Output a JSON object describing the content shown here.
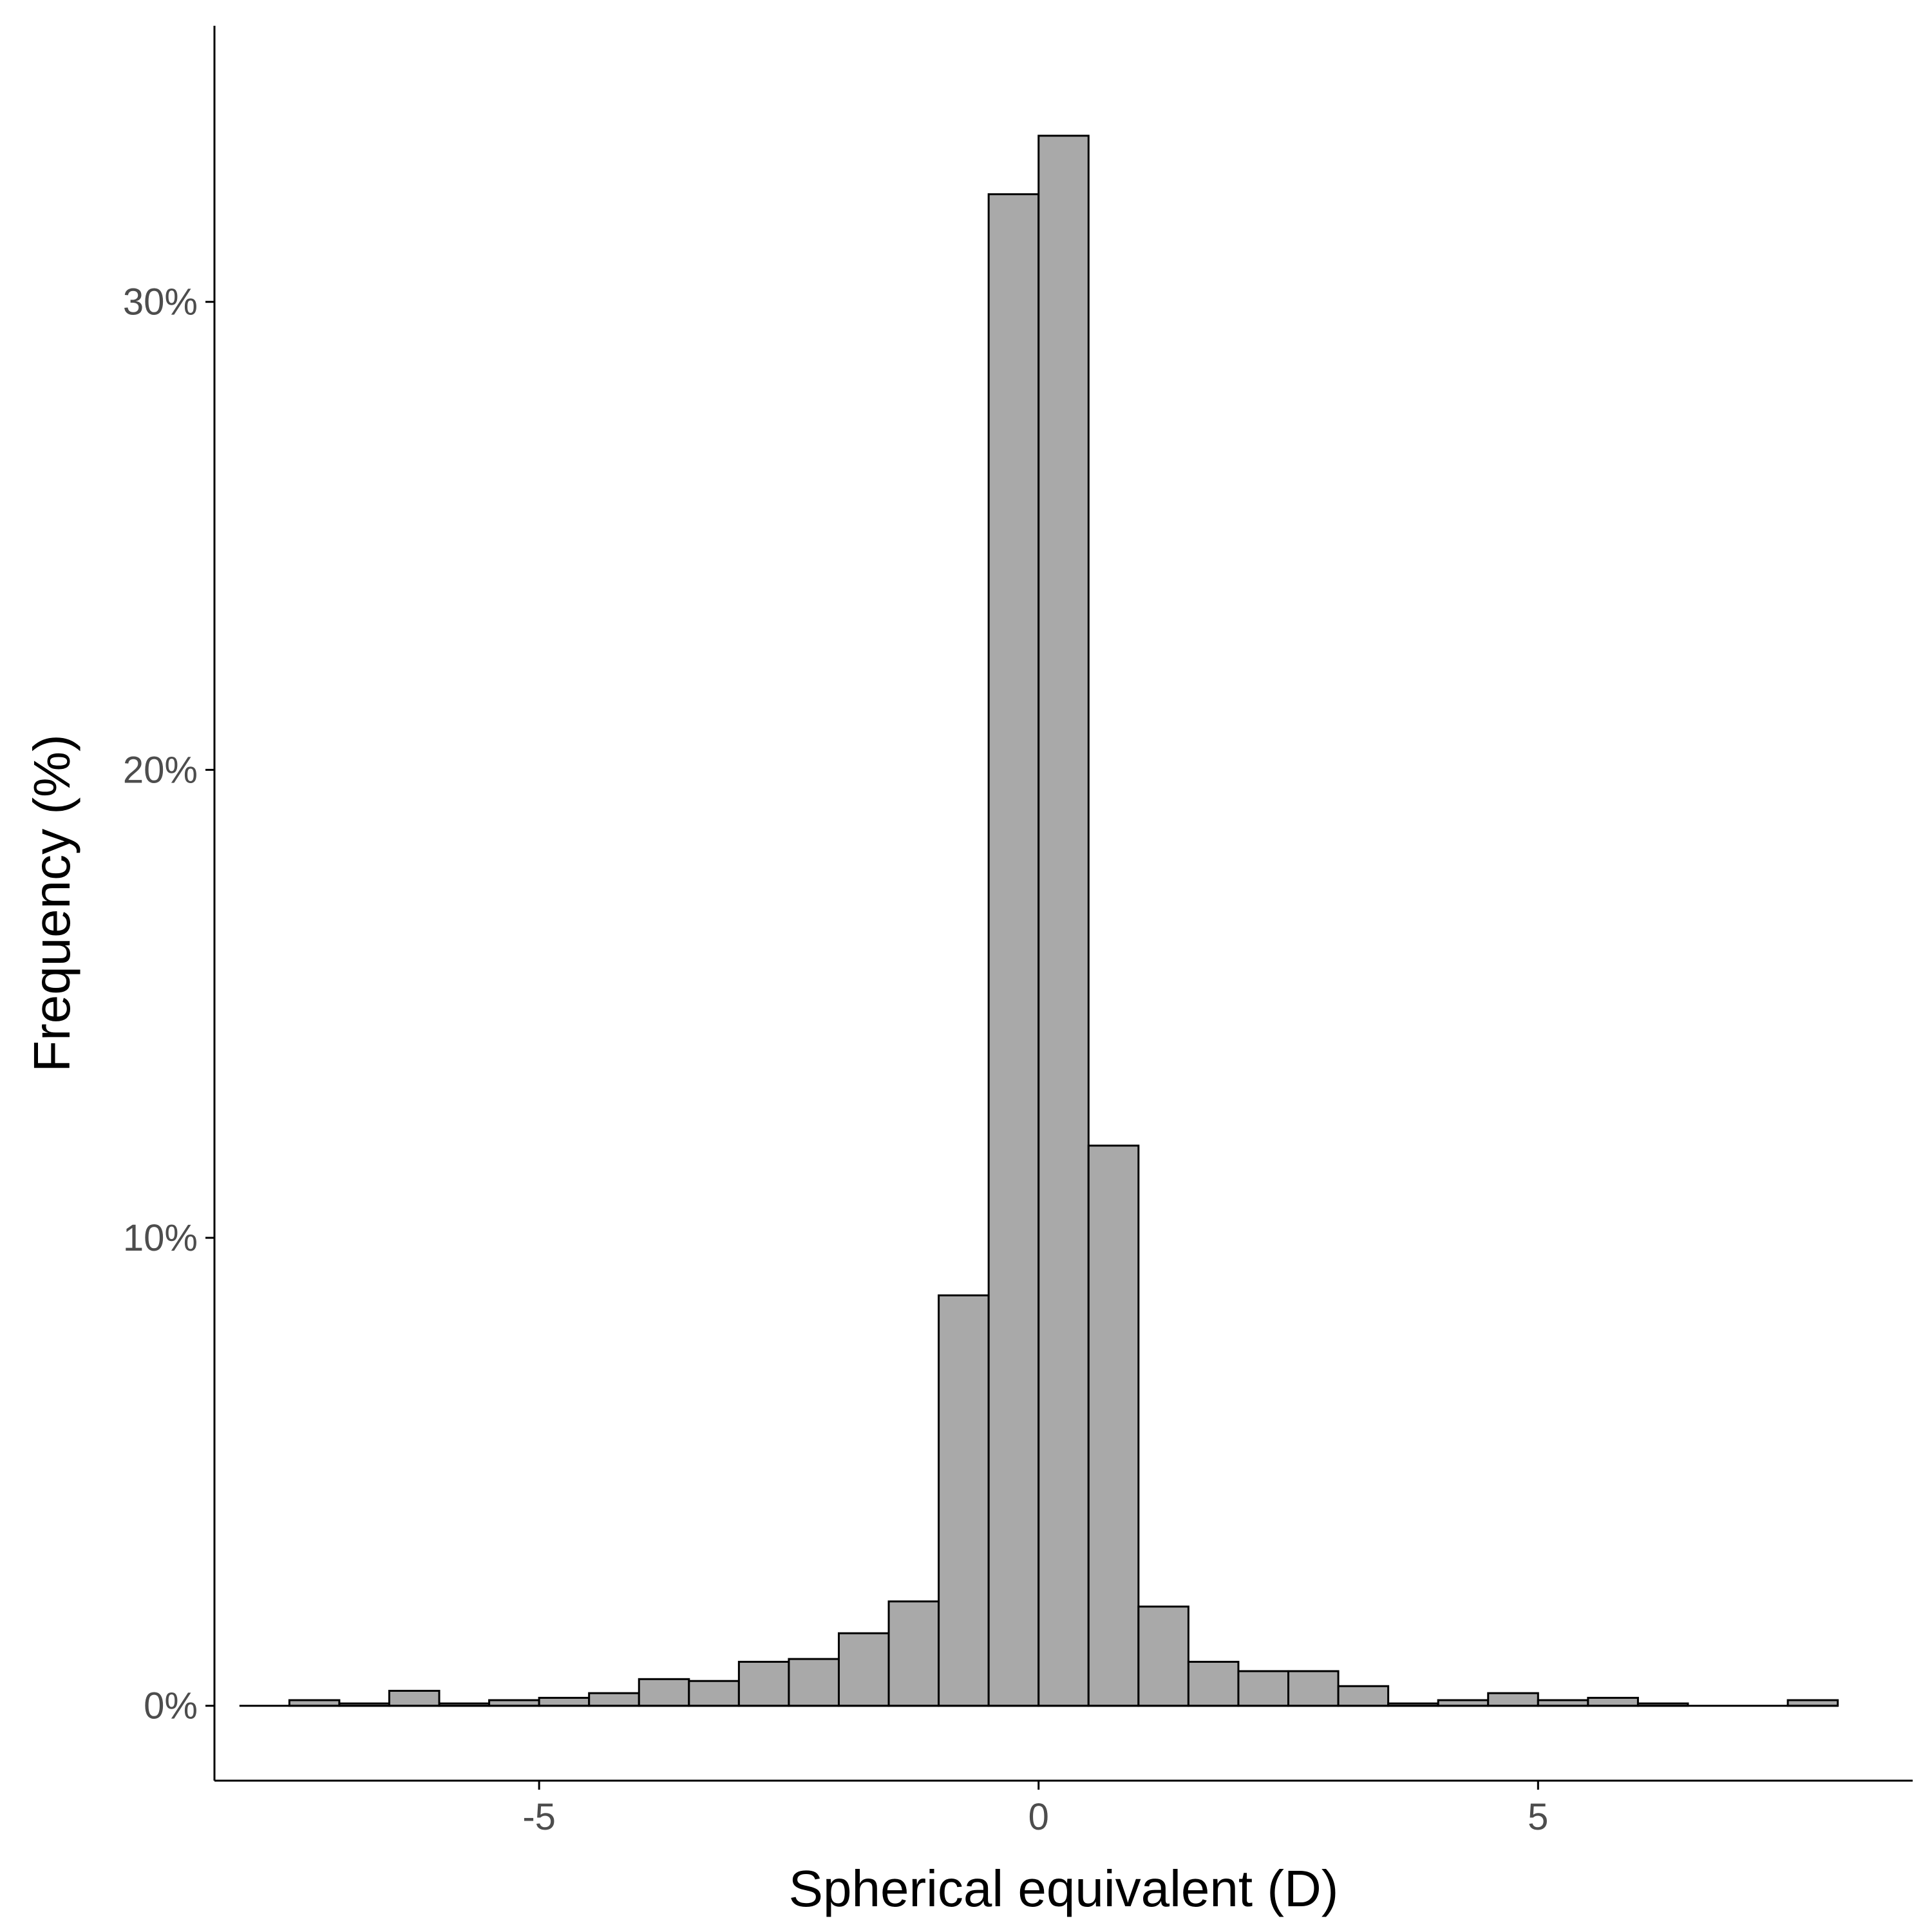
{
  "chart_data": {
    "type": "bar",
    "title": "",
    "xlabel": "Spherical equivalent (D)",
    "ylabel": "Frequency (%)",
    "xlim": [
      -8.25,
      8.75
    ],
    "ylim": [
      -1.6,
      35.9
    ],
    "x_ticks": [
      -5,
      0,
      5
    ],
    "x_tick_labels": [
      "-5",
      "0",
      "5"
    ],
    "y_ticks": [
      0,
      10,
      20,
      30
    ],
    "y_tick_labels": [
      "0%",
      "10%",
      "20%",
      "30%"
    ],
    "bin_width": 0.5,
    "bin_centers": [
      -7.75,
      -7.25,
      -6.75,
      -6.25,
      -5.75,
      -5.25,
      -4.75,
      -4.25,
      -3.75,
      -3.25,
      -2.75,
      -2.25,
      -1.75,
      -1.25,
      -0.75,
      -0.25,
      0.25,
      0.75,
      1.25,
      1.75,
      2.25,
      2.75,
      3.25,
      3.75,
      4.25,
      4.75,
      5.25,
      5.75,
      6.25,
      6.75,
      7.25,
      7.75
    ],
    "values": [
      0,
      0.12,
      0.05,
      0.32,
      0.05,
      0.12,
      0.17,
      0.27,
      0.57,
      0.53,
      0.94,
      1.0,
      1.55,
      2.23,
      8.77,
      32.3,
      33.55,
      11.97,
      2.12,
      0.94,
      0.74,
      0.74,
      0.42,
      0.05,
      0.12,
      0.27,
      0.12,
      0.17,
      0.05,
      0,
      0,
      0.12
    ],
    "grid": false,
    "bar_fill": "#a9a9a9",
    "bar_stroke": "#000000"
  }
}
